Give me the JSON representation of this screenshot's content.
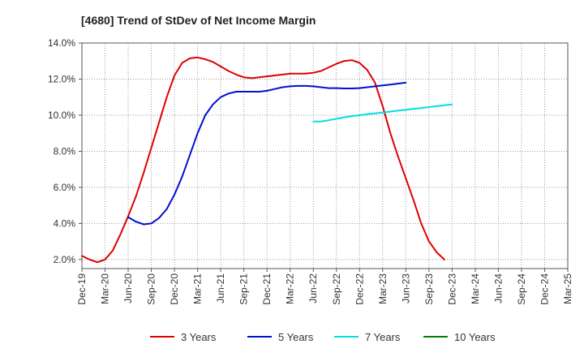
{
  "chart_data": {
    "type": "line",
    "title": "[4680]  Trend of StDev of Net Income Margin",
    "xlabel": "",
    "ylabel": "",
    "x_tick_labels": [
      "Dec-19",
      "Mar-20",
      "Jun-20",
      "Sep-20",
      "Dec-20",
      "Mar-21",
      "Jun-21",
      "Sep-21",
      "Dec-21",
      "Mar-22",
      "Jun-22",
      "Sep-22",
      "Dec-22",
      "Mar-23",
      "Jun-23",
      "Sep-23",
      "Dec-23",
      "Mar-24",
      "Jun-24",
      "Sep-24",
      "Dec-24",
      "Mar-25"
    ],
    "y_tick_labels": [
      "2.0%",
      "4.0%",
      "6.0%",
      "8.0%",
      "10.0%",
      "12.0%",
      "14.0%"
    ],
    "ylim": [
      1.5,
      14.0
    ],
    "y_ticks": [
      2,
      4,
      6,
      8,
      10,
      12,
      14
    ],
    "grid": true,
    "legend_position": "bottom",
    "series": [
      {
        "name": "3 Years",
        "color": "#e00000",
        "start_index": 0,
        "values": [
          2.2,
          2.0,
          1.85,
          2.0,
          2.5,
          3.4,
          4.4,
          5.5,
          6.8,
          8.2,
          9.6,
          11.0,
          12.2,
          12.9,
          13.15,
          13.2,
          13.1,
          12.95,
          12.7,
          12.45,
          12.25,
          12.1,
          12.05,
          12.1,
          12.15,
          12.2,
          12.25,
          12.3,
          12.3,
          12.3,
          12.35,
          12.45,
          12.65,
          12.85,
          13.0,
          13.05,
          12.9,
          12.5,
          11.8,
          10.5,
          9.0,
          7.7,
          6.5,
          5.3,
          4.0,
          3.0,
          2.4,
          2.0
        ]
      },
      {
        "name": "5 Years",
        "color": "#0010d0",
        "start_index": 6,
        "values": [
          4.35,
          4.1,
          3.95,
          4.0,
          4.3,
          4.8,
          5.6,
          6.6,
          7.8,
          9.0,
          10.0,
          10.6,
          11.0,
          11.2,
          11.3,
          11.3,
          11.3,
          11.3,
          11.35,
          11.45,
          11.55,
          11.6,
          11.62,
          11.62,
          11.6,
          11.55,
          11.5,
          11.5,
          11.48,
          11.48,
          11.5,
          11.55,
          11.6,
          11.65,
          11.7,
          11.75,
          11.8
        ]
      },
      {
        "name": "7 Years",
        "color": "#00e0e0",
        "start_index": 30,
        "values": [
          9.65,
          9.65,
          9.72,
          9.8,
          9.88,
          9.95,
          10.0,
          10.05,
          10.1,
          10.15,
          10.2,
          10.25,
          10.3,
          10.35,
          10.4,
          10.45,
          10.5,
          10.55,
          10.6
        ]
      },
      {
        "name": "10 Years",
        "color": "#008000",
        "start_index": 0,
        "values": []
      }
    ]
  }
}
